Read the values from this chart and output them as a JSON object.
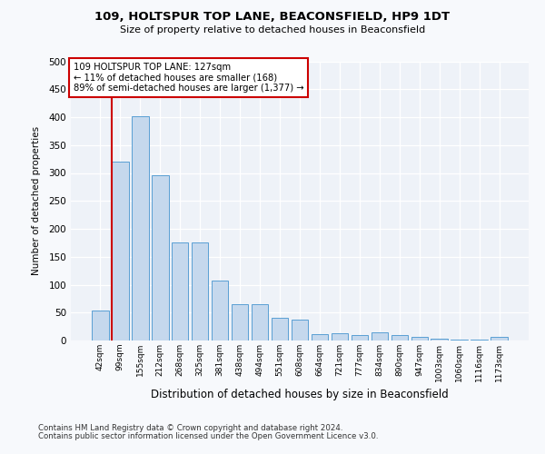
{
  "title": "109, HOLTSPUR TOP LANE, BEACONSFIELD, HP9 1DT",
  "subtitle": "Size of property relative to detached houses in Beaconsfield",
  "xlabel": "Distribution of detached houses by size in Beaconsfield",
  "ylabel": "Number of detached properties",
  "categories": [
    "42sqm",
    "99sqm",
    "155sqm",
    "212sqm",
    "268sqm",
    "325sqm",
    "381sqm",
    "438sqm",
    "494sqm",
    "551sqm",
    "608sqm",
    "664sqm",
    "721sqm",
    "777sqm",
    "834sqm",
    "890sqm",
    "947sqm",
    "1003sqm",
    "1060sqm",
    "1116sqm",
    "1173sqm"
  ],
  "values": [
    53,
    320,
    401,
    296,
    176,
    176,
    108,
    65,
    65,
    40,
    38,
    12,
    13,
    10,
    15,
    10,
    7,
    3,
    1,
    1,
    6
  ],
  "bar_color": "#c5d8ed",
  "bar_edge_color": "#5a9fd4",
  "vline_x_index": 1,
  "vline_color": "#cc0000",
  "annotation_text": "109 HOLTSPUR TOP LANE: 127sqm\n← 11% of detached houses are smaller (168)\n89% of semi-detached houses are larger (1,377) →",
  "annotation_box_color": "#ffffff",
  "annotation_box_edge": "#cc0000",
  "ylim": [
    0,
    500
  ],
  "yticks": [
    0,
    50,
    100,
    150,
    200,
    250,
    300,
    350,
    400,
    450,
    500
  ],
  "footer1": "Contains HM Land Registry data © Crown copyright and database right 2024.",
  "footer2": "Contains public sector information licensed under the Open Government Licence v3.0.",
  "bg_color": "#f7f9fc",
  "plot_bg_color": "#eef2f8"
}
